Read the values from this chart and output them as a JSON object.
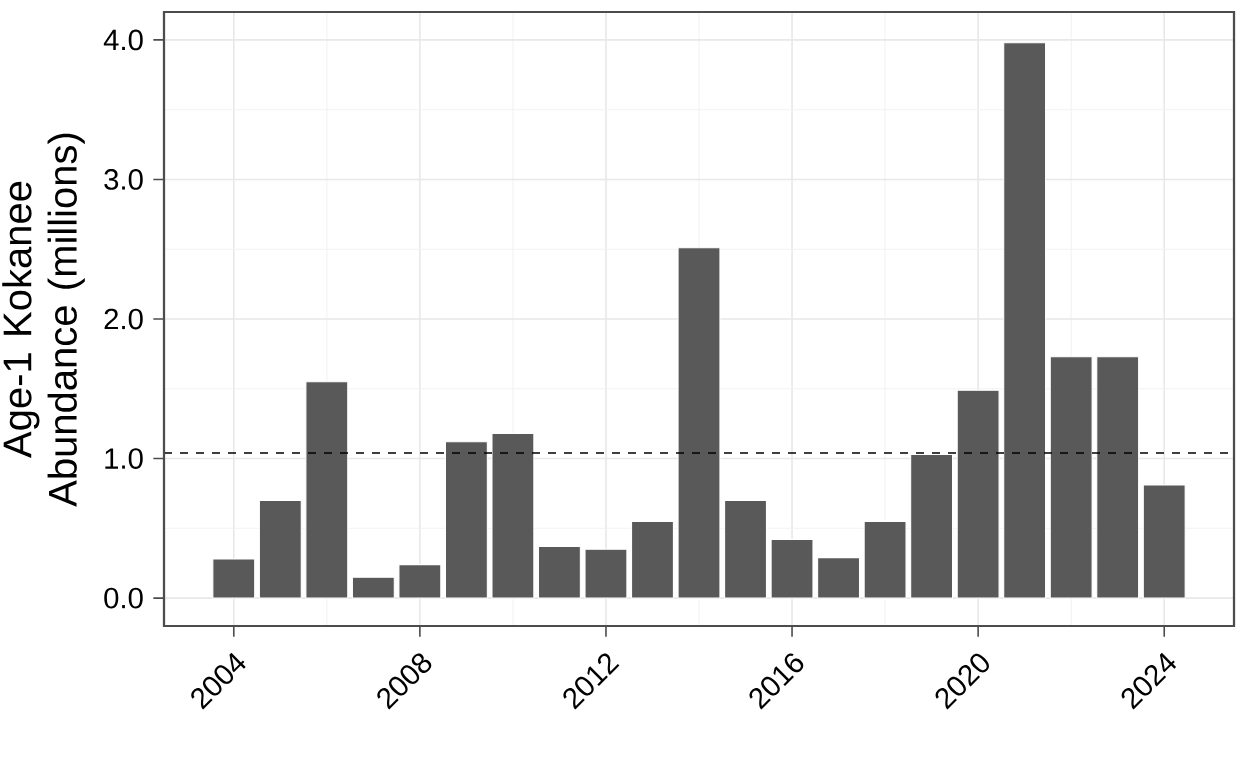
{
  "chart_data": {
    "type": "bar",
    "ylabel": "Age-1 Kokanee Abundance (millions)",
    "x": [
      2004,
      2005,
      2006,
      2007,
      2008,
      2009,
      2010,
      2011,
      2012,
      2013,
      2014,
      2015,
      2016,
      2017,
      2018,
      2019,
      2020,
      2021,
      2022,
      2023,
      2024
    ],
    "values": [
      0.28,
      0.7,
      1.55,
      0.15,
      0.24,
      1.12,
      1.18,
      0.37,
      0.35,
      0.55,
      2.51,
      0.7,
      0.42,
      0.29,
      0.55,
      1.03,
      1.49,
      3.98,
      1.73,
      1.73,
      0.81
    ],
    "color": "#595959",
    "xlim": [
      2002.5,
      2025.5
    ],
    "xticks": [
      2004,
      2008,
      2012,
      2016,
      2020,
      2024
    ],
    "ylim": [
      -0.2,
      4.2
    ],
    "yticks": [
      {
        "value": 0,
        "label": "0.0"
      },
      {
        "value": 1,
        "label": "1.0"
      },
      {
        "value": 2,
        "label": "2.0"
      },
      {
        "value": 3,
        "label": "3.0"
      },
      {
        "value": 4,
        "label": "4.0"
      }
    ],
    "ref_lines": [
      {
        "axis": "y",
        "value": 1.04,
        "line_style": "dashed"
      }
    ],
    "grid": true
  }
}
